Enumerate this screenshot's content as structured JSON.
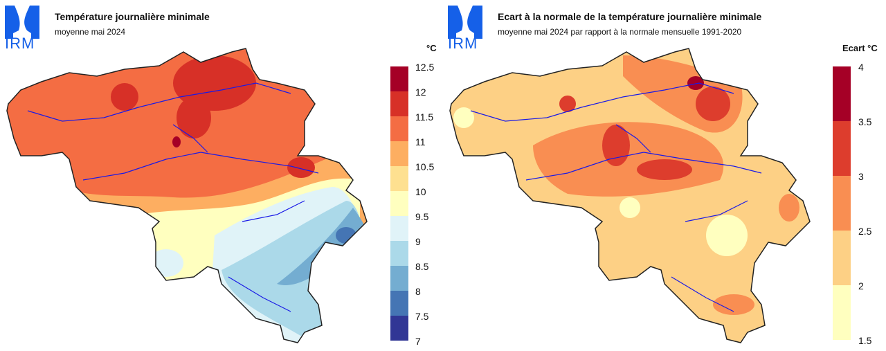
{
  "logo_text": "IRM",
  "left": {
    "title": "Température journalière minimale",
    "subtitle": "moyenne mai 2024",
    "legend": {
      "unit": "°C",
      "ticks": [
        "12.5",
        "12",
        "11.5",
        "11",
        "10.5",
        "10",
        "9.5",
        "9",
        "8.5",
        "8",
        "7.5",
        "7"
      ],
      "colors": [
        "#a50026",
        "#d73027",
        "#f46d43",
        "#fdae61",
        "#fee090",
        "#ffffbf",
        "#e0f3f8",
        "#abd9e9",
        "#74add1",
        "#4575b4",
        "#313695"
      ]
    }
  },
  "right": {
    "title": "Ecart à la normale de la température journalière minimale",
    "subtitle": "moyenne mai 2024 par rapport à la normale mensuelle 1991-2020",
    "legend": {
      "unit": "Ecart °C",
      "ticks": [
        "4",
        "3.5",
        "3",
        "2.5",
        "2",
        "1.5"
      ],
      "colors": [
        "#a50026",
        "#dd3d2d",
        "#f98e52",
        "#fdd085",
        "#ffffbf"
      ]
    }
  }
}
